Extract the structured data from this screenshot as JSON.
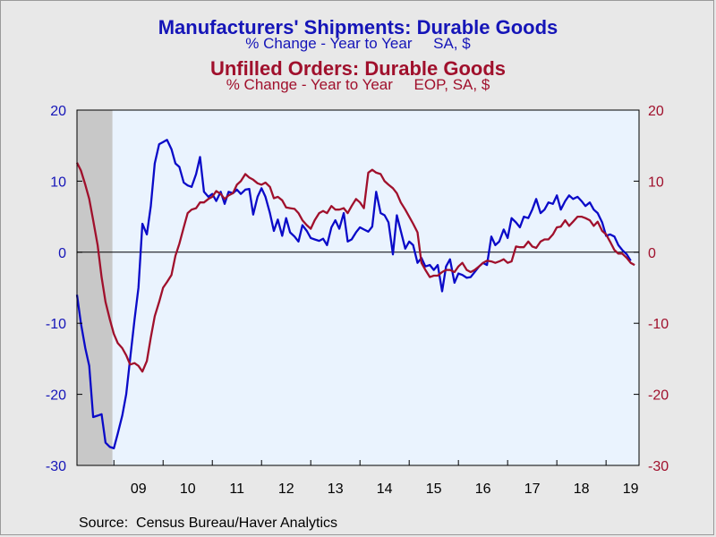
{
  "titles": {
    "series1_title": "Manufacturers' Shipments: Durable Goods",
    "series1_subtitle": "% Change - Year to Year     SA, $",
    "series2_title": "Unfilled Orders: Durable Goods",
    "series2_subtitle": "% Change - Year to Year     EOP, SA, $"
  },
  "source": "Source:  Census Bureau/Haver Analytics",
  "colors": {
    "shipments": "#0a0ac8",
    "unfilled": "#a0102c",
    "plot_bg": "#eaf3fe",
    "recession": "#c8c8c8",
    "page_bg": "#e8e8e8",
    "left_axis": "#1515b8",
    "right_axis": "#a0102c"
  },
  "chart_data": {
    "type": "line",
    "x_unit": "year (decimal)",
    "xlim": [
      2008.25,
      2019.67
    ],
    "x_tick_labels": [
      "09",
      "10",
      "11",
      "12",
      "13",
      "14",
      "15",
      "16",
      "17",
      "18",
      "19"
    ],
    "left_axis": {
      "ylim": [
        -30,
        20
      ],
      "ticks": [
        20,
        10,
        0,
        -10,
        -20,
        -30
      ]
    },
    "right_axis": {
      "ylim": [
        -30,
        20
      ],
      "ticks": [
        20,
        10,
        0,
        -10,
        -20,
        -30
      ]
    },
    "grid": false,
    "zero_line": true,
    "recession_shading": [
      [
        2008.25,
        2008.97
      ]
    ],
    "series": [
      {
        "name": "Manufacturers' Shipments: Durable Goods",
        "axis": "left",
        "color": "#0a0ac8",
        "points": [
          [
            2008.25,
            -6.0
          ],
          [
            2008.33,
            -10.0
          ],
          [
            2008.42,
            -13.5
          ],
          [
            2008.5,
            -16.0
          ],
          [
            2008.58,
            -23.2
          ],
          [
            2008.67,
            -23.0
          ],
          [
            2008.75,
            -22.8
          ],
          [
            2008.83,
            -26.8
          ],
          [
            2008.92,
            -27.4
          ],
          [
            2009.0,
            -27.6
          ],
          [
            2009.08,
            -25.5
          ],
          [
            2009.17,
            -23.0
          ],
          [
            2009.25,
            -20.0
          ],
          [
            2009.33,
            -15.0
          ],
          [
            2009.42,
            -9.5
          ],
          [
            2009.5,
            -5.0
          ],
          [
            2009.58,
            4.0
          ],
          [
            2009.67,
            2.5
          ],
          [
            2009.75,
            6.5
          ],
          [
            2009.83,
            12.5
          ],
          [
            2009.92,
            15.2
          ],
          [
            2010.0,
            15.5
          ],
          [
            2010.08,
            15.8
          ],
          [
            2010.17,
            14.5
          ],
          [
            2010.25,
            12.5
          ],
          [
            2010.33,
            12.0
          ],
          [
            2010.42,
            9.8
          ],
          [
            2010.5,
            9.4
          ],
          [
            2010.58,
            9.2
          ],
          [
            2010.67,
            11.0
          ],
          [
            2010.75,
            13.4
          ],
          [
            2010.83,
            8.5
          ],
          [
            2010.92,
            7.8
          ],
          [
            2011.0,
            8.2
          ],
          [
            2011.08,
            7.2
          ],
          [
            2011.17,
            8.5
          ],
          [
            2011.25,
            6.8
          ],
          [
            2011.33,
            8.5
          ],
          [
            2011.42,
            8.3
          ],
          [
            2011.5,
            8.8
          ],
          [
            2011.58,
            8.2
          ],
          [
            2011.67,
            8.8
          ],
          [
            2011.75,
            8.9
          ],
          [
            2011.83,
            5.3
          ],
          [
            2011.92,
            7.8
          ],
          [
            2012.0,
            9.0
          ],
          [
            2012.08,
            7.8
          ],
          [
            2012.17,
            5.5
          ],
          [
            2012.25,
            3.0
          ],
          [
            2012.33,
            4.6
          ],
          [
            2012.42,
            2.3
          ],
          [
            2012.5,
            4.8
          ],
          [
            2012.58,
            2.8
          ],
          [
            2012.67,
            2.2
          ],
          [
            2012.75,
            1.5
          ],
          [
            2012.83,
            3.8
          ],
          [
            2012.92,
            3.0
          ],
          [
            2013.0,
            2.0
          ],
          [
            2013.08,
            1.8
          ],
          [
            2013.17,
            1.6
          ],
          [
            2013.25,
            1.9
          ],
          [
            2013.33,
            1.0
          ],
          [
            2013.42,
            3.5
          ],
          [
            2013.5,
            4.5
          ],
          [
            2013.58,
            3.3
          ],
          [
            2013.67,
            5.5
          ],
          [
            2013.75,
            1.5
          ],
          [
            2013.83,
            1.8
          ],
          [
            2013.92,
            2.8
          ],
          [
            2014.0,
            3.5
          ],
          [
            2014.08,
            3.2
          ],
          [
            2014.17,
            2.9
          ],
          [
            2014.25,
            3.6
          ],
          [
            2014.33,
            8.5
          ],
          [
            2014.42,
            5.5
          ],
          [
            2014.5,
            5.2
          ],
          [
            2014.58,
            4.2
          ],
          [
            2014.67,
            -0.3
          ],
          [
            2014.75,
            5.2
          ],
          [
            2014.83,
            3.0
          ],
          [
            2014.92,
            0.5
          ],
          [
            2015.0,
            1.5
          ],
          [
            2015.08,
            1.0
          ],
          [
            2015.17,
            -1.5
          ],
          [
            2015.25,
            -0.8
          ],
          [
            2015.33,
            -2.0
          ],
          [
            2015.42,
            -1.8
          ],
          [
            2015.5,
            -2.5
          ],
          [
            2015.58,
            -1.8
          ],
          [
            2015.67,
            -5.5
          ],
          [
            2015.75,
            -2.0
          ],
          [
            2015.83,
            -1.0
          ],
          [
            2015.92,
            -4.3
          ],
          [
            2016.0,
            -3.0
          ],
          [
            2016.08,
            -3.2
          ],
          [
            2016.17,
            -3.6
          ],
          [
            2016.25,
            -3.5
          ],
          [
            2016.33,
            -2.8
          ],
          [
            2016.42,
            -2.0
          ],
          [
            2016.5,
            -1.5
          ],
          [
            2016.58,
            -1.8
          ],
          [
            2016.67,
            2.2
          ],
          [
            2016.75,
            1.0
          ],
          [
            2016.83,
            1.5
          ],
          [
            2016.92,
            3.2
          ],
          [
            2017.0,
            2.0
          ],
          [
            2017.08,
            4.8
          ],
          [
            2017.17,
            4.2
          ],
          [
            2017.25,
            3.5
          ],
          [
            2017.33,
            5.0
          ],
          [
            2017.42,
            4.8
          ],
          [
            2017.5,
            6.0
          ],
          [
            2017.58,
            7.5
          ],
          [
            2017.67,
            5.5
          ],
          [
            2017.75,
            6.0
          ],
          [
            2017.83,
            7.0
          ],
          [
            2017.92,
            6.8
          ],
          [
            2018.0,
            8.0
          ],
          [
            2018.08,
            6.0
          ],
          [
            2018.17,
            7.2
          ],
          [
            2018.25,
            8.0
          ],
          [
            2018.33,
            7.5
          ],
          [
            2018.42,
            7.8
          ],
          [
            2018.5,
            7.2
          ],
          [
            2018.58,
            6.5
          ],
          [
            2018.67,
            7.0
          ],
          [
            2018.75,
            6.0
          ],
          [
            2018.83,
            5.5
          ],
          [
            2018.92,
            4.2
          ],
          [
            2019.0,
            2.3
          ],
          [
            2019.08,
            2.5
          ],
          [
            2019.17,
            2.2
          ],
          [
            2019.25,
            1.0
          ],
          [
            2019.33,
            0.3
          ],
          [
            2019.42,
            -0.3
          ],
          [
            2019.5,
            -1.2
          ]
        ]
      },
      {
        "name": "Unfilled Orders: Durable Goods",
        "axis": "right",
        "color": "#a0102c",
        "points": [
          [
            2008.25,
            12.6
          ],
          [
            2008.33,
            11.5
          ],
          [
            2008.42,
            9.5
          ],
          [
            2008.5,
            7.5
          ],
          [
            2008.58,
            4.5
          ],
          [
            2008.67,
            1.0
          ],
          [
            2008.75,
            -3.5
          ],
          [
            2008.83,
            -7.0
          ],
          [
            2008.92,
            -9.5
          ],
          [
            2009.0,
            -11.5
          ],
          [
            2009.08,
            -12.8
          ],
          [
            2009.17,
            -13.5
          ],
          [
            2009.25,
            -14.5
          ],
          [
            2009.33,
            -15.8
          ],
          [
            2009.42,
            -15.6
          ],
          [
            2009.5,
            -16.0
          ],
          [
            2009.58,
            -16.8
          ],
          [
            2009.67,
            -15.3
          ],
          [
            2009.75,
            -12.0
          ],
          [
            2009.83,
            -9.0
          ],
          [
            2009.92,
            -7.0
          ],
          [
            2010.0,
            -5.0
          ],
          [
            2010.08,
            -4.2
          ],
          [
            2010.17,
            -3.2
          ],
          [
            2010.25,
            -0.5
          ],
          [
            2010.33,
            1.2
          ],
          [
            2010.42,
            3.5
          ],
          [
            2010.5,
            5.5
          ],
          [
            2010.58,
            6.0
          ],
          [
            2010.67,
            6.2
          ],
          [
            2010.75,
            7.0
          ],
          [
            2010.83,
            7.0
          ],
          [
            2010.92,
            7.5
          ],
          [
            2011.0,
            7.8
          ],
          [
            2011.08,
            8.6
          ],
          [
            2011.17,
            8.2
          ],
          [
            2011.25,
            7.5
          ],
          [
            2011.33,
            8.0
          ],
          [
            2011.42,
            8.3
          ],
          [
            2011.5,
            9.5
          ],
          [
            2011.58,
            10.0
          ],
          [
            2011.67,
            11.0
          ],
          [
            2011.75,
            10.5
          ],
          [
            2011.83,
            10.2
          ],
          [
            2011.92,
            9.7
          ],
          [
            2012.0,
            9.5
          ],
          [
            2012.08,
            9.8
          ],
          [
            2012.17,
            9.2
          ],
          [
            2012.25,
            7.6
          ],
          [
            2012.33,
            7.8
          ],
          [
            2012.42,
            7.3
          ],
          [
            2012.5,
            6.3
          ],
          [
            2012.58,
            6.2
          ],
          [
            2012.67,
            6.1
          ],
          [
            2012.75,
            5.5
          ],
          [
            2012.83,
            4.5
          ],
          [
            2012.92,
            3.8
          ],
          [
            2013.0,
            3.3
          ],
          [
            2013.08,
            4.5
          ],
          [
            2013.17,
            5.5
          ],
          [
            2013.25,
            5.8
          ],
          [
            2013.33,
            5.5
          ],
          [
            2013.42,
            6.5
          ],
          [
            2013.5,
            6.0
          ],
          [
            2013.58,
            6.0
          ],
          [
            2013.67,
            6.2
          ],
          [
            2013.75,
            5.5
          ],
          [
            2013.83,
            6.5
          ],
          [
            2013.92,
            7.5
          ],
          [
            2014.0,
            7.0
          ],
          [
            2014.08,
            6.2
          ],
          [
            2014.17,
            11.2
          ],
          [
            2014.25,
            11.6
          ],
          [
            2014.33,
            11.2
          ],
          [
            2014.42,
            11.0
          ],
          [
            2014.5,
            10.0
          ],
          [
            2014.58,
            9.5
          ],
          [
            2014.67,
            9.0
          ],
          [
            2014.75,
            8.3
          ],
          [
            2014.83,
            7.0
          ],
          [
            2014.92,
            6.0
          ],
          [
            2015.0,
            5.0
          ],
          [
            2015.08,
            4.0
          ],
          [
            2015.17,
            2.8
          ],
          [
            2015.25,
            -1.5
          ],
          [
            2015.33,
            -2.5
          ],
          [
            2015.42,
            -3.5
          ],
          [
            2015.5,
            -3.3
          ],
          [
            2015.58,
            -3.3
          ],
          [
            2015.67,
            -2.8
          ],
          [
            2015.75,
            -2.5
          ],
          [
            2015.83,
            -2.5
          ],
          [
            2015.92,
            -2.8
          ],
          [
            2016.0,
            -2.0
          ],
          [
            2016.08,
            -1.5
          ],
          [
            2016.17,
            -2.5
          ],
          [
            2016.25,
            -2.8
          ],
          [
            2016.33,
            -2.5
          ],
          [
            2016.42,
            -2.0
          ],
          [
            2016.5,
            -1.5
          ],
          [
            2016.58,
            -1.2
          ],
          [
            2016.67,
            -1.3
          ],
          [
            2016.75,
            -1.5
          ],
          [
            2016.83,
            -1.3
          ],
          [
            2016.92,
            -1.0
          ],
          [
            2017.0,
            -1.5
          ],
          [
            2017.08,
            -1.3
          ],
          [
            2017.17,
            0.8
          ],
          [
            2017.25,
            0.7
          ],
          [
            2017.33,
            0.7
          ],
          [
            2017.42,
            1.5
          ],
          [
            2017.5,
            0.8
          ],
          [
            2017.58,
            0.6
          ],
          [
            2017.67,
            1.5
          ],
          [
            2017.75,
            1.8
          ],
          [
            2017.83,
            1.8
          ],
          [
            2017.92,
            2.5
          ],
          [
            2018.0,
            3.5
          ],
          [
            2018.08,
            3.6
          ],
          [
            2018.17,
            4.5
          ],
          [
            2018.25,
            3.7
          ],
          [
            2018.33,
            4.3
          ],
          [
            2018.42,
            5.0
          ],
          [
            2018.5,
            5.0
          ],
          [
            2018.58,
            4.8
          ],
          [
            2018.67,
            4.5
          ],
          [
            2018.75,
            3.7
          ],
          [
            2018.83,
            4.3
          ],
          [
            2018.92,
            3.0
          ],
          [
            2019.0,
            2.5
          ],
          [
            2019.08,
            1.5
          ],
          [
            2019.17,
            0.3
          ],
          [
            2019.25,
            -0.2
          ],
          [
            2019.33,
            -0.2
          ],
          [
            2019.42,
            -0.8
          ],
          [
            2019.5,
            -1.5
          ],
          [
            2019.58,
            -1.8
          ]
        ]
      }
    ]
  }
}
